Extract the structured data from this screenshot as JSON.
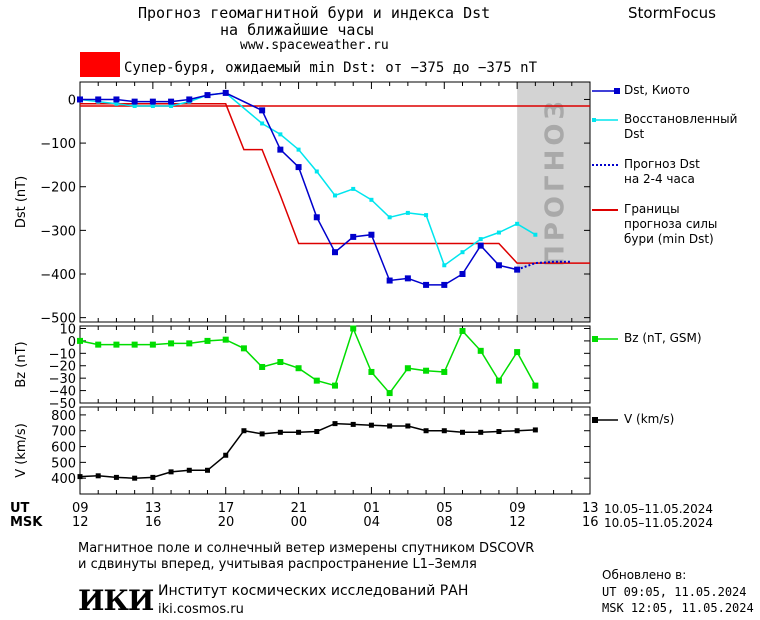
{
  "header": {
    "title_line1": "Прогноз геомагнитной бури и индекса Dst",
    "title_line2": "на ближайшие часы",
    "url": "www.spaceweather.ru",
    "brand": "StormFocus"
  },
  "storm_banner": {
    "text": "Супер-буря, ожидаемый min Dst: от −375 до −375 nT",
    "color": "#ff0000"
  },
  "forecast_label": "ПРОГНОЗ",
  "legend": {
    "dst_kyoto": "Dst, Киото",
    "restored_line1": "Восстановленный",
    "restored_line2": "Dst",
    "forecast_line1": "Прогноз Dst",
    "forecast_line2": "на 2-4 часа",
    "bounds_line1": "Границы",
    "bounds_line2": "прогноза силы",
    "bounds_line3": "бури (min Dst)",
    "bz": "Bz (nT, GSM)",
    "v": "V (km/s)"
  },
  "time_axis": {
    "ut_label": "UT",
    "msk_label": "MSK",
    "ut_ticks": [
      "09",
      "13",
      "17",
      "21",
      "01",
      "05",
      "09",
      "13"
    ],
    "msk_ticks": [
      "12",
      "16",
      "20",
      "00",
      "04",
      "08",
      "12",
      "16"
    ],
    "date_range_ut": "10.05–11.05.2024",
    "date_range_msk": "10.05–11.05.2024"
  },
  "footer": {
    "note_line1": "Магнитное поле и солнечный ветер измерены спутником DSCOVR",
    "note_line2": "и сдвинуты вперед, учитывая распространение L1–Земля",
    "logo_text": "ИКИ",
    "institute": "Институт космических исследований РАН",
    "institute_url": "iki.cosmos.ru",
    "updated_label": "Обновлено в:",
    "updated_ut": "UT  09:05, 11.05.2024",
    "updated_msk": "MSK 12:05, 11.05.2024"
  },
  "colors": {
    "dst": "#0000cc",
    "restored": "#00e5ee",
    "forecast": "#0000cc",
    "bounds": "#dd0000",
    "bz": "#00dd00",
    "v": "#000000",
    "forecast_zone": "#d3d3d3"
  },
  "chart_data": [
    {
      "type": "line",
      "title": "Dst",
      "ylabel": "Dst (nT)",
      "xlim": [
        9,
        37
      ],
      "ylim": [
        -510,
        40
      ],
      "yticks": [
        0,
        -100,
        -200,
        -300,
        -400,
        -500
      ],
      "ytick_labels": [
        "0",
        "−100",
        "−200",
        "−300",
        "−400",
        "−500"
      ],
      "forecast_zone": [
        33,
        37
      ],
      "series": [
        {
          "name": "Dst, Киото",
          "x": [
            9,
            10,
            11,
            12,
            13,
            14,
            15,
            16,
            17,
            19,
            20,
            21,
            22,
            23,
            24,
            25,
            26,
            27,
            28,
            29,
            30,
            31,
            32,
            33
          ],
          "y": [
            0,
            0,
            0,
            -5,
            -5,
            -5,
            0,
            10,
            15,
            -25,
            -115,
            -155,
            -270,
            -350,
            -315,
            -310,
            -415,
            -410,
            -425,
            -425,
            -400,
            -335,
            -380,
            -390
          ]
        },
        {
          "name": "Восстановленный Dst",
          "x": [
            9,
            10,
            11,
            12,
            13,
            14,
            15,
            16,
            17,
            19,
            20,
            21,
            22,
            23,
            24,
            25,
            26,
            27,
            28,
            29,
            30,
            31,
            32,
            33,
            34
          ],
          "y": [
            0,
            -5,
            -10,
            -15,
            -15,
            -15,
            -5,
            10,
            15,
            -55,
            -80,
            -115,
            -165,
            -220,
            -205,
            -230,
            -270,
            -260,
            -265,
            -380,
            -350,
            -320,
            -305,
            -285,
            -310
          ]
        },
        {
          "name": "Прогноз Dst на 2-4 часа",
          "x": [
            33,
            34,
            35,
            36
          ],
          "y": [
            -390,
            -375,
            -372,
            -372
          ]
        },
        {
          "name": "Границы прогноза силы бури (min Dst) — верхняя",
          "x": [
            9,
            17,
            18,
            19,
            20,
            21,
            22,
            23,
            24,
            25,
            26,
            27,
            28,
            29,
            30,
            31,
            32,
            33,
            34,
            35,
            36,
            37
          ],
          "y": [
            -10,
            -10,
            -115,
            -115,
            -220,
            -330,
            -330,
            -330,
            -330,
            -330,
            -330,
            -330,
            -330,
            -330,
            -330,
            -330,
            -330,
            -375,
            -375,
            -375,
            -375,
            -375
          ]
        },
        {
          "name": "Границы прогноза силы бури (min Dst) — нижняя",
          "x": [
            9,
            17,
            18,
            19,
            20,
            21,
            22,
            23,
            24,
            25,
            26,
            27,
            28,
            29,
            30,
            31,
            32,
            33,
            34,
            35,
            36,
            37
          ],
          "y": [
            -15,
            -15,
            -15,
            -15,
            -15,
            -15,
            -15,
            -15,
            -15,
            -15,
            -15,
            -15,
            -15,
            -15,
            -15,
            -15,
            -15,
            -15,
            -15,
            -15,
            -15,
            -15
          ]
        }
      ]
    },
    {
      "type": "line",
      "title": "Bz",
      "ylabel": "Bz (nT)",
      "xlim": [
        9,
        37
      ],
      "ylim": [
        -50,
        12
      ],
      "yticks": [
        10,
        0,
        -10,
        -20,
        -30,
        -40,
        -50
      ],
      "ytick_labels": [
        "10",
        "0",
        "−10",
        "−20",
        "−30",
        "−40",
        "−50"
      ],
      "series": [
        {
          "name": "Bz (nT, GSM)",
          "x": [
            9,
            10,
            11,
            12,
            13,
            14,
            15,
            16,
            17,
            18,
            19,
            20,
            21,
            22,
            23,
            24,
            25,
            26,
            27,
            28,
            29,
            30,
            31,
            32,
            33,
            34
          ],
          "y": [
            0,
            -3,
            -3,
            -3,
            -3,
            -2,
            -2,
            0,
            1,
            -6,
            -21,
            -17,
            -22,
            -32,
            -36,
            10,
            -25,
            -42,
            -22,
            -24,
            -25,
            8,
            -8,
            -32,
            -9,
            -36
          ]
        }
      ]
    },
    {
      "type": "line",
      "title": "V",
      "ylabel": "V (km/s)",
      "xlim": [
        9,
        37
      ],
      "ylim": [
        300,
        850
      ],
      "yticks": [
        400,
        500,
        600,
        700,
        800
      ],
      "ytick_labels": [
        "400",
        "500",
        "600",
        "700",
        "800"
      ],
      "series": [
        {
          "name": "V (km/s)",
          "x": [
            9,
            10,
            11,
            12,
            13,
            14,
            15,
            16,
            17,
            18,
            19,
            20,
            21,
            22,
            23,
            24,
            25,
            26,
            27,
            28,
            29,
            30,
            31,
            32,
            33,
            34
          ],
          "y": [
            410,
            415,
            405,
            400,
            405,
            440,
            450,
            450,
            545,
            700,
            680,
            690,
            690,
            695,
            745,
            740,
            735,
            730,
            730,
            700,
            700,
            690,
            690,
            695,
            700,
            705
          ]
        }
      ]
    }
  ]
}
